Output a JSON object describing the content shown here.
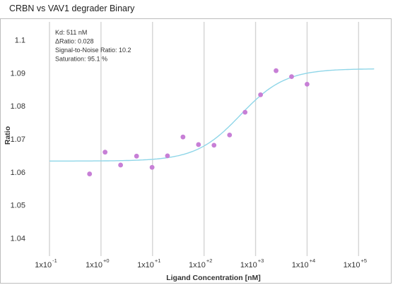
{
  "title": "CRBN vs VAV1 degrader Binary",
  "chart_data": {
    "type": "scatter",
    "x_scale": "log",
    "xlabel": "Ligand Concentration [nM]",
    "ylabel": "Ratio",
    "xlim": [
      0.04,
      350000
    ],
    "ylim": [
      1.0345,
      1.1055
    ],
    "y_ticks": [
      1.04,
      1.05,
      1.06,
      1.07,
      1.08,
      1.09,
      1.1
    ],
    "y_tick_labels": [
      "1.04",
      "1.05",
      "1.06",
      "1.07",
      "1.08",
      "1.09",
      "1.1"
    ],
    "x_ticks": [
      {
        "value": 0.1,
        "base": "1x10",
        "exp": "-1"
      },
      {
        "value": 1,
        "base": "1x10",
        "exp": "+0"
      },
      {
        "value": 10,
        "base": "1x10",
        "exp": "+1"
      },
      {
        "value": 100,
        "base": "1x10",
        "exp": "+2"
      },
      {
        "value": 1000,
        "base": "1x10",
        "exp": "+3"
      },
      {
        "value": 10000,
        "base": "1x10",
        "exp": "+4"
      },
      {
        "value": 100000,
        "base": "1x10",
        "exp": "+5"
      }
    ],
    "grid": "vertical",
    "annotations": [
      "Kd: 511 nM",
      "ΔRatio: 0.028",
      "Signal-to-Noise Ratio: 10.2",
      "Saturation: 95.1 %"
    ],
    "series": [
      {
        "points": [
          {
            "x": 0.6,
            "y": 1.0594
          },
          {
            "x": 1.2,
            "y": 1.066
          },
          {
            "x": 2.4,
            "y": 1.0621
          },
          {
            "x": 4.9,
            "y": 1.0648
          },
          {
            "x": 9.8,
            "y": 1.0614
          },
          {
            "x": 19.5,
            "y": 1.0649
          },
          {
            "x": 39,
            "y": 1.0706
          },
          {
            "x": 78,
            "y": 1.0683
          },
          {
            "x": 156,
            "y": 1.0681
          },
          {
            "x": 313,
            "y": 1.0712
          },
          {
            "x": 625,
            "y": 1.0781
          },
          {
            "x": 1250,
            "y": 1.0834
          },
          {
            "x": 2500,
            "y": 1.0907
          },
          {
            "x": 5000,
            "y": 1.0889
          },
          {
            "x": 10000,
            "y": 1.0866
          }
        ]
      }
    ],
    "fit": {
      "bottom": 1.0633,
      "top": 1.0913,
      "kd": 511
    },
    "colors": {
      "points": "#c77fd6",
      "fit": "#8fd6e8",
      "grid": "#d4d4d4"
    }
  }
}
